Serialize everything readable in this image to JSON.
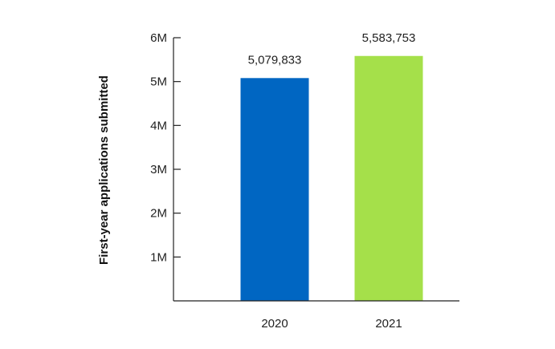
{
  "chart_data": {
    "type": "bar",
    "title": "",
    "xlabel": "",
    "ylabel": "First-year applications submitted",
    "categories": [
      "2020",
      "2021"
    ],
    "values": [
      5079833,
      5583753
    ],
    "data_labels": [
      "5,079,833",
      "5,583,753"
    ],
    "colors": [
      "#0066c2",
      "#a5e04a"
    ],
    "ylim": [
      0,
      6000000
    ],
    "yticks": [
      1000000,
      2000000,
      3000000,
      4000000,
      5000000,
      6000000
    ],
    "ytick_labels": [
      "1M",
      "2M",
      "3M",
      "4M",
      "5M",
      "6M"
    ],
    "grid": false,
    "legend": "none"
  }
}
